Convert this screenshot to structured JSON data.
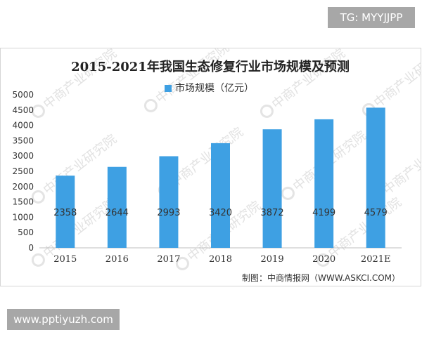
{
  "top_badge": "TG: MYYJJPP",
  "bottom_badge": "www.pptiyuzh.com",
  "source_text": "制图：中商情报网（WWW.ASKCI.COM）",
  "watermark_text": "中商产业研究院",
  "chart_data": {
    "type": "bar",
    "title": "2015-2021年我国生态修复行业市场规模及预测",
    "legend": {
      "label": "市场规模（亿元）",
      "placement": "top-center"
    },
    "categories": [
      "2015",
      "2016",
      "2017",
      "2018",
      "2019",
      "2020",
      "2021E"
    ],
    "series": [
      {
        "name": "市场规模（亿元）",
        "values": [
          2358,
          2644,
          2993,
          3420,
          3872,
          4199,
          4579
        ]
      }
    ],
    "ylim": [
      0,
      5000
    ],
    "yticks": [
      "0",
      "500",
      "1000",
      "1500",
      "2000",
      "2500",
      "3000",
      "3500",
      "4000",
      "4500",
      "5000"
    ],
    "xlabel": "",
    "ylabel": "",
    "grid": false,
    "colors": {
      "bar": "#3ea0e3",
      "axis": "#bfbfbf",
      "text": "#333333"
    }
  }
}
